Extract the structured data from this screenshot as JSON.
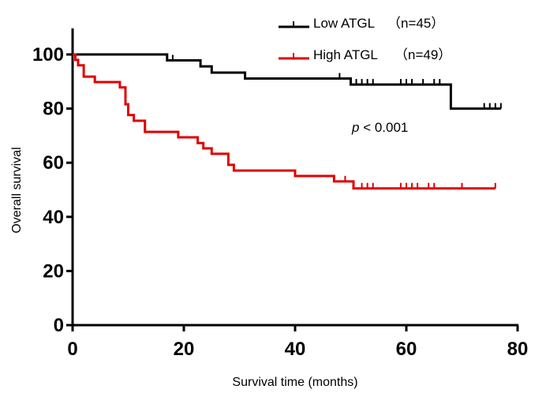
{
  "chart_data": {
    "type": "line",
    "title": "",
    "xlabel": "Survival time (months)",
    "ylabel": "Overall survival",
    "xlim": [
      0,
      80
    ],
    "ylim": [
      0,
      100
    ],
    "x_ticks": [
      "0",
      "20",
      "40",
      "60",
      "80"
    ],
    "y_ticks": [
      "0",
      "20",
      "40",
      "60",
      "80",
      "100"
    ],
    "grid": false,
    "legend_position": "top-right",
    "annotation": {
      "italic": "p",
      "rest": " < 0.001"
    },
    "series": [
      {
        "name": "Low ATGL",
        "legend_n": "（n=45）",
        "color": "#000000",
        "x": [
          0,
          17,
          17,
          23,
          23,
          25,
          25,
          31,
          31,
          50,
          50,
          68,
          68,
          77
        ],
        "y": [
          100,
          100,
          97.8,
          97.8,
          95.6,
          95.6,
          93.3,
          93.3,
          91.1,
          91.1,
          88.9,
          88.9,
          80,
          80
        ],
        "censored": [
          [
            18,
            97.8
          ],
          [
            48,
            91.1
          ],
          [
            51,
            88.9
          ],
          [
            52,
            88.9
          ],
          [
            53,
            88.9
          ],
          [
            54,
            88.9
          ],
          [
            59,
            88.9
          ],
          [
            60,
            88.9
          ],
          [
            61,
            88.9
          ],
          [
            63,
            88.9
          ],
          [
            65,
            88.9
          ],
          [
            66,
            88.9
          ],
          [
            74,
            80
          ],
          [
            75,
            80
          ],
          [
            76,
            80
          ],
          [
            77,
            80
          ]
        ]
      },
      {
        "name": "High ATGL",
        "legend_n": "（n=49）",
        "color": "#e00000",
        "x": [
          0,
          0.5,
          0.5,
          1,
          1,
          2,
          2,
          4,
          4,
          8.5,
          8.5,
          9.5,
          9.5,
          10,
          10,
          11,
          11,
          13,
          13,
          19,
          19,
          22.5,
          22.5,
          23.5,
          23.5,
          25,
          25,
          28,
          28,
          29,
          29,
          40,
          40,
          47,
          47,
          50.5,
          50.5,
          76
        ],
        "y": [
          100,
          100,
          98,
          98,
          96,
          96,
          91.8,
          91.8,
          89.8,
          89.8,
          87.8,
          87.8,
          81.6,
          81.6,
          77.6,
          77.6,
          75.5,
          75.5,
          71.4,
          71.4,
          69.4,
          69.4,
          67.3,
          67.3,
          65.3,
          65.3,
          63.3,
          63.3,
          59.2,
          59.2,
          57.1,
          57.1,
          55.1,
          55.1,
          53.1,
          53.1,
          50.5,
          50.5
        ],
        "censored": [
          [
            49,
            53.1
          ],
          [
            52,
            50.5
          ],
          [
            53,
            50.5
          ],
          [
            54,
            50.5
          ],
          [
            59,
            50.5
          ],
          [
            60,
            50.5
          ],
          [
            61,
            50.5
          ],
          [
            62,
            50.5
          ],
          [
            64,
            50.5
          ],
          [
            65,
            50.5
          ],
          [
            70,
            50.5
          ],
          [
            76,
            50.5
          ]
        ]
      }
    ]
  }
}
